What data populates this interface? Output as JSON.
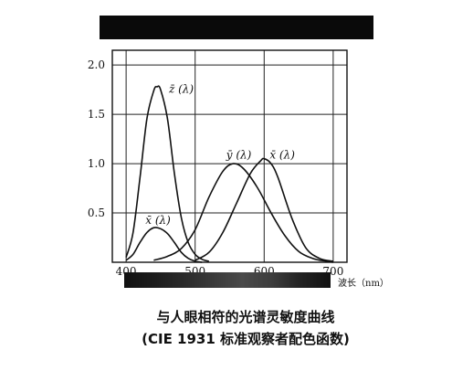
{
  "title_box_color": "#0a0a0a",
  "spectrum_band": {
    "stops": [
      "#111111",
      "#1c1c1c",
      "#2a2a2a",
      "#3a3a3a",
      "#4a4a4a",
      "#3d3d3d",
      "#222222",
      "#111111"
    ]
  },
  "chart_data": {
    "type": "line",
    "title": "",
    "xlabel": "波长（nm）",
    "ylabel": "",
    "xlim": [
      380,
      720
    ],
    "ylim": [
      0,
      2.15
    ],
    "grid": true,
    "x_ticks": [
      400,
      500,
      600,
      700
    ],
    "y_ticks": [
      0.5,
      1.0,
      1.5,
      2.0
    ],
    "x_tick_labels": [
      "400",
      "500",
      "600",
      "700"
    ],
    "y_tick_labels": [
      "0.5",
      "1.0",
      "1.5",
      "2.0"
    ],
    "series": [
      {
        "name": "z̄(λ)",
        "x": [
          400,
          410,
          420,
          430,
          440,
          445,
          450,
          460,
          470,
          480,
          490,
          500,
          510,
          520
        ],
        "y": [
          0.05,
          0.3,
          0.85,
          1.45,
          1.74,
          1.78,
          1.75,
          1.45,
          0.9,
          0.45,
          0.2,
          0.08,
          0.03,
          0.01
        ]
      },
      {
        "name": "x̄(λ)",
        "x": [
          400,
          410,
          420,
          430,
          440,
          450,
          460,
          470,
          480,
          490,
          500,
          510
        ],
        "y": [
          0.02,
          0.08,
          0.2,
          0.3,
          0.35,
          0.34,
          0.29,
          0.2,
          0.1,
          0.04,
          0.01,
          0.0
        ]
      },
      {
        "name": "ȳ(λ)",
        "x": [
          440,
          460,
          480,
          500,
          520,
          540,
          555,
          570,
          590,
          610,
          630,
          650,
          670,
          690,
          700
        ],
        "y": [
          0.02,
          0.06,
          0.14,
          0.33,
          0.66,
          0.92,
          1.0,
          0.95,
          0.76,
          0.5,
          0.27,
          0.11,
          0.04,
          0.01,
          0.0
        ]
      },
      {
        "name": "x̄(λ)",
        "x": [
          500,
          520,
          540,
          560,
          580,
          595,
          600,
          610,
          620,
          640,
          660,
          680,
          700
        ],
        "y": [
          0.02,
          0.1,
          0.3,
          0.6,
          0.9,
          1.03,
          1.05,
          1.0,
          0.86,
          0.45,
          0.15,
          0.04,
          0.01
        ]
      }
    ],
    "curve_labels": [
      {
        "text": "z̄ (λ)",
        "x": 462,
        "y": 1.72
      },
      {
        "text": "x̄ (λ)",
        "x": 428,
        "y": 0.39
      },
      {
        "text": "ȳ (λ)",
        "x": 545,
        "y": 1.05
      },
      {
        "text": "x̄ (λ)",
        "x": 608,
        "y": 1.05
      }
    ],
    "unit_label": "波长（nm）"
  },
  "caption": {
    "line1": "与人眼相符的光谱灵敏度曲线",
    "line2": "(CIE 1931 标准观察者配色函数)"
  }
}
